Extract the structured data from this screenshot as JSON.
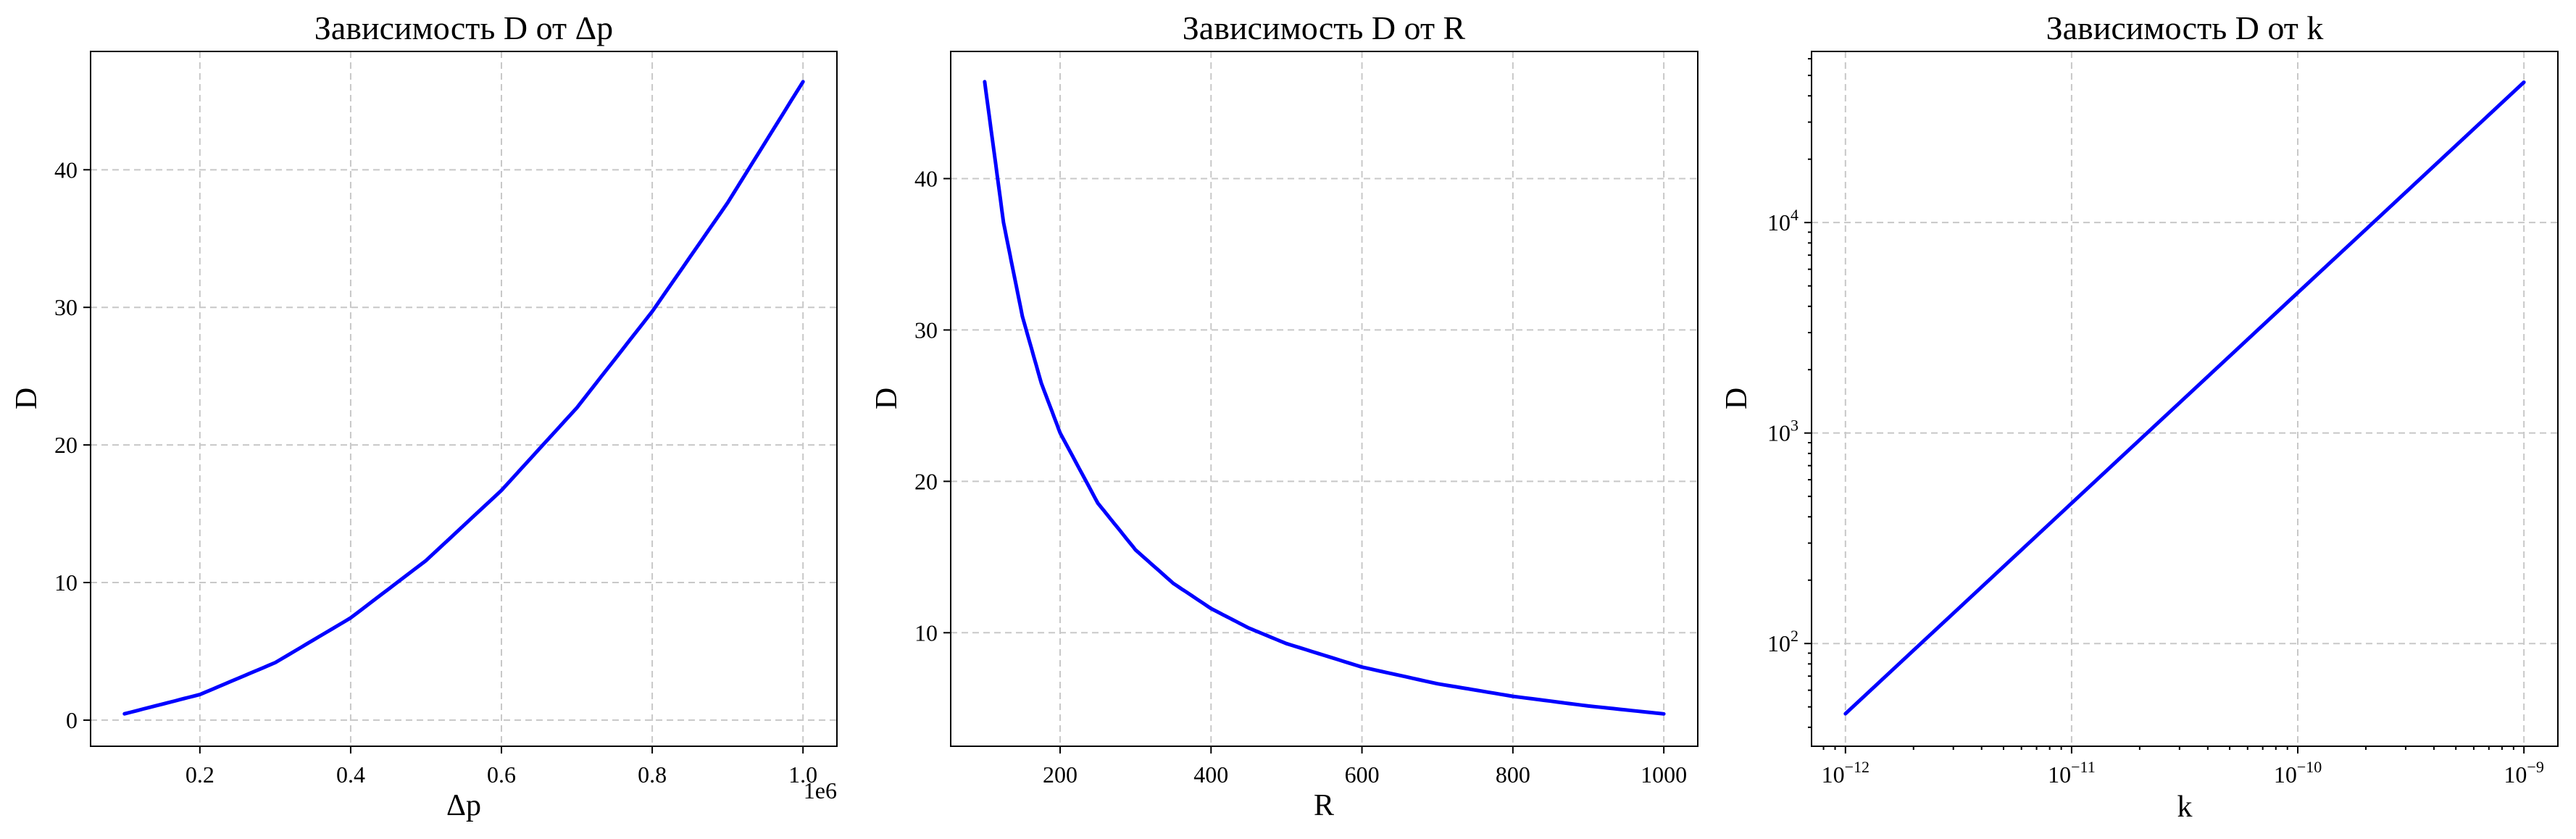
{
  "chart_data": [
    {
      "type": "line",
      "title": "Зависимость D от Δp",
      "xlabel": "Δp",
      "ylabel": "D",
      "x_offset_label": "1e6",
      "x_scale": "linear",
      "y_scale": "linear",
      "grid": true,
      "legend": "none",
      "xlim": [
        0.055,
        1.045
      ],
      "ylim": [
        -1.9,
        48.6
      ],
      "xticks": [
        0.2,
        0.4,
        0.6,
        0.8,
        1.0
      ],
      "xtick_labels": [
        "0.2",
        "0.4",
        "0.6",
        "0.8",
        "1.0"
      ],
      "yticks": [
        0,
        10,
        20,
        30,
        40
      ],
      "ytick_labels": [
        "0",
        "10",
        "20",
        "30",
        "40"
      ],
      "series": [
        {
          "color": "#0000ff",
          "x": [
            0.1,
            0.2,
            0.3,
            0.4,
            0.5,
            0.6,
            0.7,
            0.8,
            0.9,
            1.0
          ],
          "y": [
            0.46,
            1.86,
            4.18,
            7.43,
            11.6,
            16.7,
            22.7,
            29.7,
            37.6,
            46.4
          ]
        }
      ]
    },
    {
      "type": "line",
      "title": "Зависимость D от R",
      "xlabel": "R",
      "ylabel": "D",
      "x_scale": "linear",
      "y_scale": "linear",
      "grid": true,
      "legend": "none",
      "xlim": [
        55,
        1045
      ],
      "ylim": [
        2.5,
        48.4
      ],
      "xticks": [
        200,
        400,
        600,
        800,
        1000
      ],
      "xtick_labels": [
        "200",
        "400",
        "600",
        "800",
        "1000"
      ],
      "yticks": [
        10,
        20,
        30,
        40
      ],
      "ytick_labels": [
        "10",
        "20",
        "30",
        "40"
      ],
      "series": [
        {
          "color": "#0000ff",
          "x": [
            100,
            125,
            150,
            175,
            200,
            250,
            300,
            350,
            400,
            450,
            500,
            600,
            700,
            800,
            900,
            1000
          ],
          "y": [
            46.4,
            37.1,
            30.9,
            26.5,
            23.2,
            18.56,
            15.47,
            13.26,
            11.6,
            10.31,
            9.28,
            7.73,
            6.63,
            5.8,
            5.16,
            4.64
          ]
        }
      ]
    },
    {
      "type": "line",
      "title": "Зависимость D от k",
      "xlabel": "k",
      "ylabel": "D",
      "x_scale": "log",
      "y_scale": "log",
      "grid": true,
      "legend": "none",
      "xlim": [
        7.08e-13,
        1.413e-09
      ],
      "ylim": [
        32.5,
        65000
      ],
      "xticks": [
        1e-12,
        1e-11,
        1e-10,
        1e-09
      ],
      "xtick_labels": [
        {
          "base": "10",
          "exp": "−12"
        },
        {
          "base": "10",
          "exp": "−11"
        },
        {
          "base": "10",
          "exp": "−10"
        },
        {
          "base": "10",
          "exp": "−9"
        }
      ],
      "yticks": [
        100,
        1000,
        10000
      ],
      "ytick_labels": [
        {
          "base": "10",
          "exp": "2"
        },
        {
          "base": "10",
          "exp": "3"
        },
        {
          "base": "10",
          "exp": "4"
        }
      ],
      "series": [
        {
          "color": "#0000ff",
          "x": [
            1e-12,
            1e-09
          ],
          "y": [
            46.4,
            46400
          ]
        }
      ]
    }
  ]
}
